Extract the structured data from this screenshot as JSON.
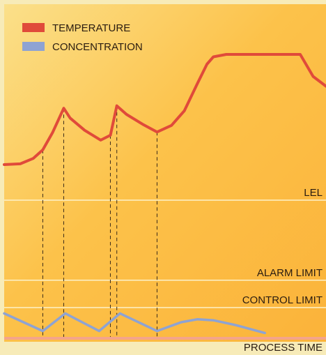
{
  "chart_data": {
    "type": "line",
    "legend": {
      "placement": "top-left",
      "items": [
        {
          "label": "TEMPERATURE",
          "color": "#e04a3a"
        },
        {
          "label": "CONCENTRATION",
          "color": "#8ea3d3"
        }
      ]
    },
    "xlabel": "PROCESS TIME",
    "limits": [
      {
        "label": "LEL",
        "level": 0.7
      },
      {
        "label": "ALARM LIMIT",
        "level": 0.29
      },
      {
        "label": "CONTROL LIMIT",
        "level": 0.15
      }
    ],
    "x": [
      0,
      0.11,
      0.17,
      0.28,
      0.34,
      0.46
    ],
    "series": [
      {
        "name": "TEMPERATURE",
        "color": "#e04a3a",
        "points": [
          [
            0.0,
            0.55
          ],
          [
            0.05,
            0.553
          ],
          [
            0.09,
            0.575
          ],
          [
            0.12,
            0.61
          ],
          [
            0.15,
            0.68
          ],
          [
            0.185,
            0.78
          ],
          [
            0.205,
            0.74
          ],
          [
            0.25,
            0.69
          ],
          [
            0.3,
            0.65
          ],
          [
            0.33,
            0.67
          ],
          [
            0.35,
            0.79
          ],
          [
            0.38,
            0.755
          ],
          [
            0.43,
            0.715
          ],
          [
            0.475,
            0.683
          ],
          [
            0.52,
            0.71
          ],
          [
            0.56,
            0.77
          ],
          [
            0.6,
            0.88
          ],
          [
            0.63,
            0.96
          ],
          [
            0.65,
            0.99
          ],
          [
            0.69,
            1.0
          ],
          [
            0.92,
            1.0
          ],
          [
            0.96,
            0.91
          ],
          [
            1.0,
            0.87
          ]
        ]
      },
      {
        "name": "CONCENTRATION",
        "color": "#8ea3d3",
        "points": [
          [
            0.0,
            0.12
          ],
          [
            0.12,
            0.03
          ],
          [
            0.19,
            0.12
          ],
          [
            0.295,
            0.03
          ],
          [
            0.36,
            0.12
          ],
          [
            0.475,
            0.03
          ],
          [
            0.55,
            0.075
          ],
          [
            0.6,
            0.09
          ],
          [
            0.65,
            0.085
          ],
          [
            0.72,
            0.06
          ],
          [
            0.81,
            0.02
          ]
        ]
      }
    ]
  }
}
